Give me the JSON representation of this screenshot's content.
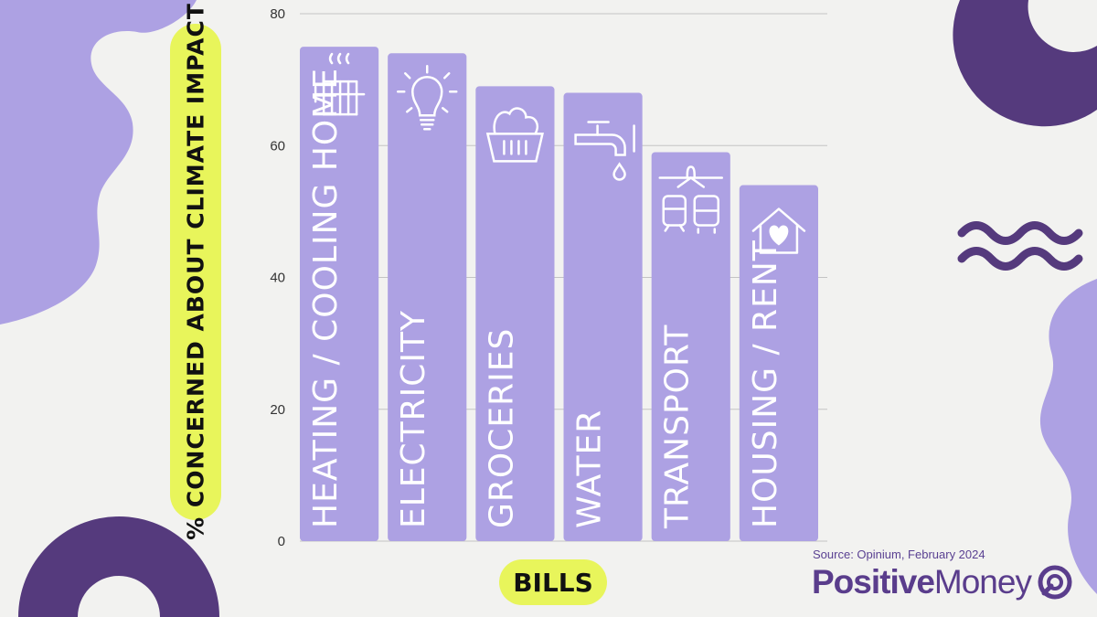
{
  "chart_data": {
    "type": "bar",
    "categories": [
      "HEATING / COOLING HOME",
      "ELECTRICITY",
      "GROCERIES",
      "WATER",
      "TRANSPORT",
      "HOUSING / RENT"
    ],
    "values": [
      75,
      74,
      69,
      68,
      59,
      54
    ],
    "icons": [
      "radiator-icon",
      "lightbulb-icon",
      "grocery-basket-icon",
      "water-tap-icon",
      "transport-icon",
      "house-heart-icon"
    ],
    "ylabel": "% CONCERNED ABOUT CLIMATE IMPACT",
    "xlabel": "BILLS",
    "ylim": [
      0,
      80
    ],
    "yticks": [
      0,
      20,
      40,
      60,
      80
    ],
    "bar_color": "#ada1e3",
    "grid": true
  },
  "footer": {
    "source": "Source: Opinium, February 2024",
    "brand_bold": "Positive",
    "brand_regular": "Money"
  },
  "colors": {
    "background": "#f2f2f0",
    "highlight": "#e8f55b",
    "purple_dark": "#553a7d",
    "purple_light": "#ada1e3",
    "brand": "#5a3d8c"
  }
}
